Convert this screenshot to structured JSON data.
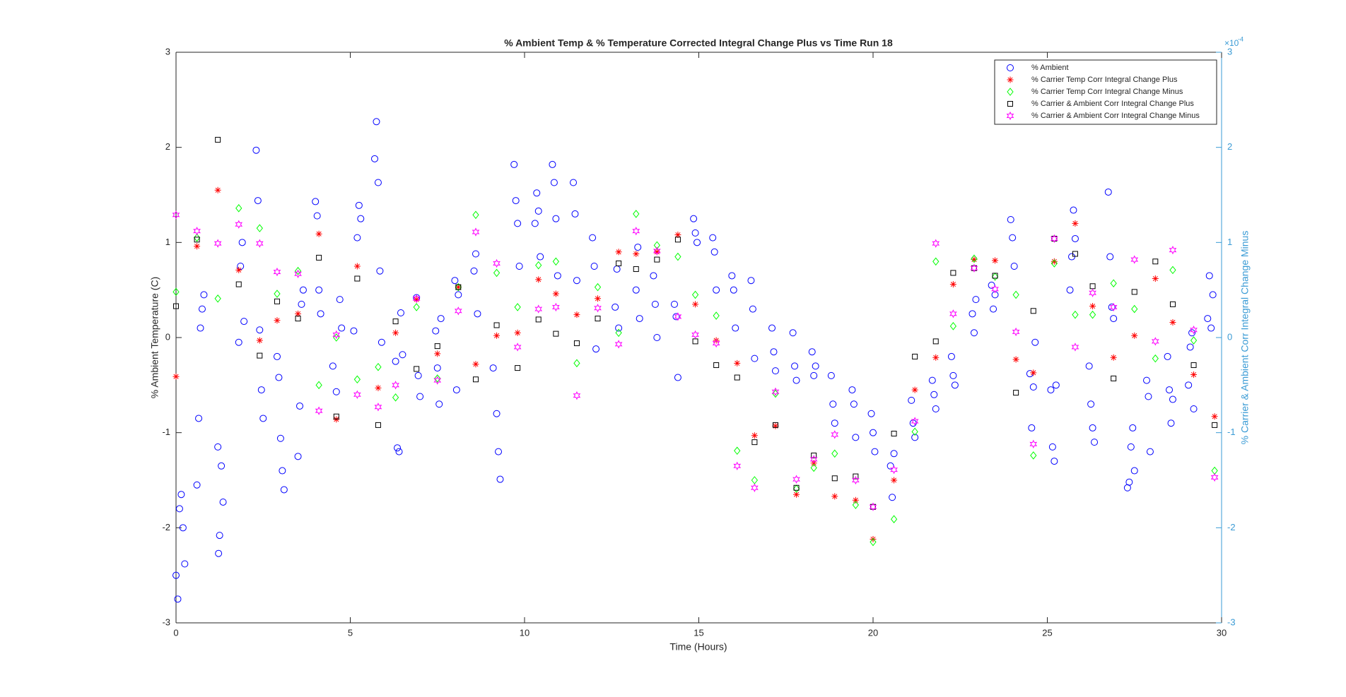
{
  "chart_data": {
    "type": "scatter",
    "title": "% Ambient Temp & % Temperature Corrected Integral Change Plus vs Time Run 18",
    "xlabel": "Time (Hours)",
    "ylabel": "% Ambient Temperature (C)",
    "y2label": "% Carrier & Ambient Corr Integral Change Minus",
    "y2_multiplier": {
      "base": "×10",
      "exponent": "-4"
    },
    "xlim": [
      0,
      30
    ],
    "xticks": [
      0,
      5,
      10,
      15,
      20,
      25,
      30
    ],
    "ylim": [
      -3,
      3
    ],
    "yticks": [
      -3,
      -2,
      -1,
      0,
      1,
      2,
      3
    ],
    "y2lim": [
      -0.0003,
      0.0003
    ],
    "y2ticks": [
      {
        "value": -0.0003,
        "label": "-3"
      },
      {
        "value": -0.0002,
        "label": "-2"
      },
      {
        "value": -0.0001,
        "label": "-1"
      },
      {
        "value": 0,
        "label": "0"
      },
      {
        "value": 0.0001,
        "label": "1"
      },
      {
        "value": 0.0002,
        "label": "2"
      },
      {
        "value": 0.0003,
        "label": "3"
      }
    ],
    "y2color": "#3a9bd5",
    "legend": "upper right",
    "grid": false,
    "series": [
      {
        "name": "% Ambient",
        "color": "#0000ff",
        "marker": "o",
        "x": [
          0.0,
          0.05,
          0.1,
          0.15,
          0.2,
          0.25,
          0.6,
          0.65,
          0.7,
          0.75,
          0.8,
          1.2,
          1.25,
          1.3,
          1.35,
          1.22,
          1.8,
          1.85,
          1.9,
          1.95,
          2.3,
          2.35,
          2.4,
          2.45,
          2.5,
          2.9,
          2.95,
          3.0,
          3.05,
          3.1,
          3.5,
          3.55,
          3.6,
          3.65,
          4.0,
          4.05,
          4.1,
          4.15,
          4.5,
          4.6,
          4.7,
          4.75,
          5.1,
          5.2,
          5.25,
          5.3,
          5.7,
          5.75,
          5.8,
          5.85,
          5.9,
          6.3,
          6.35,
          6.4,
          6.45,
          6.5,
          6.9,
          6.95,
          7.0,
          7.45,
          7.5,
          7.55,
          7.6,
          8.0,
          8.05,
          8.1,
          8.55,
          8.6,
          8.65,
          9.1,
          9.2,
          9.25,
          9.3,
          9.7,
          9.75,
          9.8,
          9.85,
          10.3,
          10.35,
          10.4,
          10.45,
          10.8,
          10.85,
          10.9,
          10.95,
          11.4,
          11.45,
          11.5,
          11.95,
          12.0,
          12.05,
          12.6,
          12.65,
          12.7,
          13.2,
          13.25,
          13.3,
          13.7,
          13.75,
          13.8,
          14.3,
          14.35,
          14.4,
          14.85,
          14.9,
          14.95,
          15.4,
          15.45,
          15.5,
          15.95,
          16.0,
          16.05,
          16.5,
          16.55,
          16.6,
          17.1,
          17.15,
          17.2,
          17.7,
          17.75,
          17.8,
          18.25,
          18.3,
          18.35,
          18.8,
          18.85,
          18.9,
          19.4,
          19.45,
          19.5,
          19.95,
          20.0,
          20.05,
          20.5,
          20.55,
          20.6,
          21.1,
          21.15,
          21.2,
          21.7,
          21.75,
          21.8,
          22.25,
          22.3,
          22.35,
          22.85,
          22.9,
          22.95,
          23.4,
          23.45,
          23.5,
          23.95,
          24.0,
          24.05,
          24.5,
          24.55,
          24.6,
          24.65,
          25.1,
          25.15,
          25.2,
          25.25,
          25.65,
          25.7,
          25.75,
          25.8,
          26.2,
          26.25,
          26.3,
          26.35,
          26.75,
          26.8,
          26.85,
          26.9,
          27.3,
          27.35,
          27.4,
          27.45,
          27.5,
          27.85,
          27.9,
          27.95,
          28.45,
          28.5,
          28.55,
          28.6,
          29.05,
          29.1,
          29.15,
          29.2,
          29.6,
          29.65,
          29.7,
          29.75
        ],
        "values": [
          -2.5,
          -2.75,
          -1.8,
          -1.65,
          -2.0,
          -2.38,
          -1.55,
          -0.85,
          0.1,
          0.3,
          0.45,
          -1.15,
          -2.08,
          -1.35,
          -1.73,
          -2.27,
          -0.05,
          0.75,
          1.0,
          0.17,
          1.97,
          1.44,
          0.08,
          -0.55,
          -0.85,
          -0.2,
          -0.42,
          -1.06,
          -1.4,
          -1.6,
          -1.25,
          -0.72,
          0.35,
          0.5,
          1.43,
          1.28,
          0.5,
          0.25,
          -0.3,
          -0.57,
          0.4,
          0.1,
          0.07,
          1.05,
          1.39,
          1.25,
          1.88,
          2.27,
          1.63,
          0.7,
          -0.05,
          -0.25,
          -1.16,
          -1.2,
          0.26,
          -0.18,
          0.42,
          -0.4,
          -0.62,
          0.07,
          -0.32,
          -0.7,
          0.2,
          0.6,
          -0.55,
          0.45,
          0.7,
          0.88,
          0.25,
          -0.32,
          -0.8,
          -1.2,
          -1.49,
          1.82,
          1.44,
          1.2,
          0.75,
          1.2,
          1.52,
          1.33,
          0.85,
          1.82,
          1.63,
          1.25,
          0.65,
          1.63,
          1.3,
          0.6,
          1.05,
          0.75,
          -0.12,
          0.32,
          0.72,
          0.1,
          0.5,
          0.95,
          0.2,
          0.65,
          0.35,
          0.0,
          0.35,
          0.22,
          -0.42,
          1.25,
          1.1,
          1.0,
          1.05,
          0.9,
          0.5,
          0.65,
          0.5,
          0.1,
          0.6,
          0.3,
          -0.22,
          0.1,
          -0.15,
          -0.35,
          0.05,
          -0.3,
          -0.45,
          -0.15,
          -0.4,
          -0.3,
          -0.4,
          -0.7,
          -0.9,
          -0.55,
          -0.7,
          -1.05,
          -0.8,
          -1.0,
          -1.2,
          -1.35,
          -1.68,
          -1.22,
          -0.66,
          -0.9,
          -1.05,
          -0.45,
          -0.6,
          -0.75,
          -0.2,
          -0.4,
          -0.5,
          0.25,
          0.05,
          0.4,
          0.55,
          0.3,
          0.45,
          1.24,
          1.05,
          0.75,
          -0.38,
          -0.95,
          -0.52,
          -0.05,
          -0.55,
          -1.15,
          -1.3,
          -0.5,
          0.5,
          0.85,
          1.34,
          1.04,
          -0.3,
          -0.7,
          -0.95,
          -1.1,
          1.53,
          0.85,
          0.32,
          0.2,
          -1.58,
          -1.52,
          -1.15,
          -0.95,
          -1.4,
          -0.45,
          -0.62,
          -1.2,
          -0.2,
          -0.55,
          -0.9,
          -0.65,
          -0.5,
          -0.1,
          0.05,
          -0.75,
          0.2,
          0.65,
          0.1,
          0.45
        ]
      },
      {
        "name": "% Carrier Temp Corr Integral Change Plus",
        "color": "#ff0000",
        "marker": "*",
        "axis": "y2",
        "x": [
          0,
          0.6,
          1.2,
          1.8,
          2.4,
          2.9,
          3.5,
          4.1,
          4.6,
          5.2,
          5.8,
          6.3,
          6.9,
          7.5,
          8.1,
          8.6,
          9.2,
          9.8,
          10.4,
          10.9,
          11.5,
          12.1,
          12.7,
          13.2,
          13.8,
          14.4,
          14.9,
          15.5,
          16.1,
          16.6,
          17.2,
          17.8,
          18.3,
          18.9,
          19.5,
          20.0,
          20.6,
          21.2,
          21.8,
          22.3,
          22.9,
          23.5,
          24.1,
          24.6,
          25.2,
          25.8,
          26.3,
          26.9,
          27.5,
          28.1,
          28.6,
          29.2,
          29.8
        ],
        "values": [
          -4.1e-05,
          9.6e-05,
          0.000155,
          7.1e-05,
          -3e-06,
          1.8e-05,
          2.5e-05,
          0.000109,
          -8.6e-05,
          7.5e-05,
          -5.3e-05,
          5e-06,
          4e-05,
          -1.7e-05,
          5.3e-05,
          -2.8e-05,
          2e-06,
          5e-06,
          6.1e-05,
          4.6e-05,
          2.4e-05,
          4.1e-05,
          9e-05,
          8.8e-05,
          9e-05,
          0.000108,
          3.5e-05,
          -3e-06,
          -2.7e-05,
          -0.000103,
          -9.3e-05,
          -0.000165,
          -0.000132,
          -0.000167,
          -0.000171,
          -0.000212,
          -0.00015,
          -5.5e-05,
          -2.1e-05,
          5.6e-05,
          8.2e-05,
          8.1e-05,
          -2.3e-05,
          -3.7e-05,
          8e-05,
          0.00012,
          3.3e-05,
          -2.1e-05,
          2e-06,
          6.2e-05,
          1.6e-05,
          -3.9e-05,
          -8.3e-05
        ]
      },
      {
        "name": "% Carrier Temp Corr Integral Change Minus",
        "color": "#00ff00",
        "marker": "d",
        "axis": "y2",
        "x": [
          0,
          0.6,
          1.2,
          1.8,
          2.4,
          2.9,
          3.5,
          4.1,
          4.6,
          5.2,
          5.8,
          6.3,
          6.9,
          7.5,
          8.1,
          8.6,
          9.2,
          9.8,
          10.4,
          10.9,
          11.5,
          12.1,
          12.7,
          13.2,
          13.8,
          14.4,
          14.9,
          15.5,
          16.1,
          16.6,
          17.2,
          17.8,
          18.3,
          18.9,
          19.5,
          20.0,
          20.6,
          21.2,
          21.8,
          22.3,
          22.9,
          23.5,
          24.1,
          24.6,
          25.2,
          25.8,
          26.3,
          26.9,
          27.5,
          28.1,
          28.6,
          29.2,
          29.8
        ],
        "values": [
          4.8e-05,
          0.000105,
          4.1e-05,
          0.000136,
          0.000115,
          4.6e-05,
          7e-05,
          -5e-05,
          0,
          -4.4e-05,
          -3.1e-05,
          -6.3e-05,
          3.2e-05,
          -4.3e-05,
          5.3e-05,
          0.000129,
          6.8e-05,
          3.2e-05,
          7.6e-05,
          8e-05,
          -2.7e-05,
          5.3e-05,
          5e-06,
          0.00013,
          9.7e-05,
          8.5e-05,
          4.5e-05,
          2.3e-05,
          -0.000119,
          -0.00015,
          -5.9e-05,
          -0.000159,
          -0.000137,
          -0.000122,
          -0.000176,
          -0.000215,
          -0.000191,
          -9.9e-05,
          8e-05,
          1.2e-05,
          8.3e-05,
          6.4e-05,
          4.5e-05,
          -0.000124,
          7.8e-05,
          2.4e-05,
          2.4e-05,
          5.7e-05,
          3e-05,
          -2.2e-05,
          7.1e-05,
          -3e-06,
          -0.00014
        ]
      },
      {
        "name": "% Carrier & Ambient Corr Integral Change Plus",
        "color": "#000000",
        "marker": "s",
        "axis": "y2",
        "x": [
          0,
          0.6,
          1.2,
          1.8,
          2.4,
          2.9,
          3.5,
          4.1,
          4.6,
          5.2,
          5.8,
          6.3,
          6.9,
          7.5,
          8.1,
          8.6,
          9.2,
          9.8,
          10.4,
          10.9,
          11.5,
          12.1,
          12.7,
          13.2,
          13.8,
          14.4,
          14.9,
          15.5,
          16.1,
          16.6,
          17.2,
          17.8,
          18.3,
          18.9,
          19.5,
          20.0,
          20.6,
          21.2,
          21.8,
          22.3,
          22.9,
          23.5,
          24.1,
          24.6,
          25.2,
          25.8,
          26.3,
          26.9,
          27.5,
          28.1,
          28.6,
          29.2,
          29.8
        ],
        "values": [
          3.3e-05,
          0.000103,
          0.000208,
          5.6e-05,
          -1.9e-05,
          3.8e-05,
          2e-05,
          8.4e-05,
          -8.3e-05,
          6.2e-05,
          -9.2e-05,
          1.7e-05,
          -3.3e-05,
          -9e-06,
          5.3e-05,
          -4.4e-05,
          1.3e-05,
          -3.2e-05,
          1.9e-05,
          4e-06,
          -6e-06,
          2e-05,
          7.8e-05,
          7.2e-05,
          8.2e-05,
          0.000103,
          -4e-06,
          -2.9e-05,
          -4.2e-05,
          -0.00011,
          -9.2e-05,
          -0.000158,
          -0.000124,
          -0.000148,
          -0.000146,
          -0.000178,
          -0.000101,
          -2e-05,
          -4e-06,
          6.8e-05,
          7.3e-05,
          6.5e-05,
          -5.8e-05,
          2.8e-05,
          0.000104,
          8.8e-05,
          5.4e-05,
          -4.3e-05,
          4.8e-05,
          8e-05,
          3.5e-05,
          -2.9e-05,
          -9.2e-05
        ]
      },
      {
        "name": "% Carrier & Ambient Corr Integral Change Minus",
        "color": "#ff00ff",
        "marker": "h",
        "axis": "y2",
        "x": [
          0,
          0.6,
          1.2,
          1.8,
          2.4,
          2.9,
          3.5,
          4.1,
          4.6,
          5.2,
          5.8,
          6.3,
          6.9,
          7.5,
          8.1,
          8.6,
          9.2,
          9.8,
          10.4,
          10.9,
          11.5,
          12.1,
          12.7,
          13.2,
          13.8,
          14.4,
          14.9,
          15.5,
          16.1,
          16.6,
          17.2,
          17.8,
          18.3,
          18.9,
          19.5,
          20.0,
          20.6,
          21.2,
          21.8,
          22.3,
          22.9,
          23.5,
          24.1,
          24.6,
          25.2,
          25.8,
          26.3,
          26.9,
          27.5,
          28.1,
          28.6,
          29.2,
          29.8
        ],
        "values": [
          0.000129,
          0.000112,
          9.9e-05,
          0.000119,
          9.9e-05,
          6.9e-05,
          6.7e-05,
          -7.7e-05,
          3e-06,
          -6e-05,
          -7.3e-05,
          -5e-05,
          4.1e-05,
          -4.5e-05,
          2.8e-05,
          0.000111,
          7.8e-05,
          -1e-05,
          3e-05,
          3.2e-05,
          -6.1e-05,
          3.1e-05,
          -7e-06,
          0.000112,
          9.1e-05,
          2.2e-05,
          3e-06,
          -6e-06,
          -0.000135,
          -0.000158,
          -5.7e-05,
          -0.000149,
          -0.000128,
          -0.000102,
          -0.00015,
          -0.000178,
          -0.000139,
          -8.8e-05,
          9.9e-05,
          2.5e-05,
          7.3e-05,
          5.1e-05,
          6e-06,
          -0.000112,
          0.000104,
          -1e-05,
          4.7e-05,
          3.2e-05,
          8.2e-05,
          -4e-06,
          9.2e-05,
          8e-06,
          -0.000147
        ]
      }
    ]
  }
}
